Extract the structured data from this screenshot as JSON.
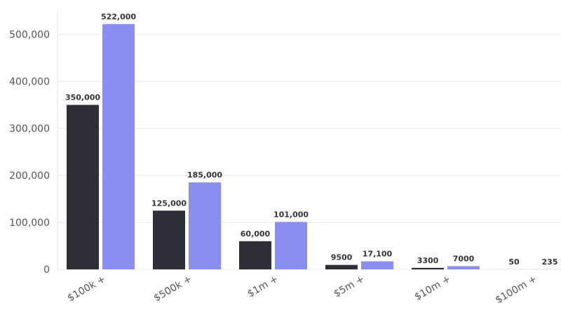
{
  "chart_data": {
    "type": "bar",
    "categories": [
      "$100k +",
      "$500k +",
      "$1m +",
      "$5m +",
      "$10m +",
      "$100m +"
    ],
    "series": [
      {
        "values": [
          350000,
          125000,
          60000,
          9500,
          3300,
          50
        ],
        "labels": [
          "350,000",
          "125,000",
          "60,000",
          "9500",
          "3300",
          "50"
        ],
        "color": "#2e2f36"
      },
      {
        "values": [
          522000,
          185000,
          101000,
          17100,
          7000,
          235
        ],
        "labels": [
          "522,000",
          "185,000",
          "101,000",
          "17,100",
          "7000",
          "235"
        ],
        "color": "#8a8df2"
      }
    ],
    "yticks": [
      "0",
      "100,000",
      "200,000",
      "300,000",
      "400,000",
      "500,000"
    ],
    "ylim": [
      0,
      540000
    ],
    "grid": true,
    "legend": "none"
  }
}
